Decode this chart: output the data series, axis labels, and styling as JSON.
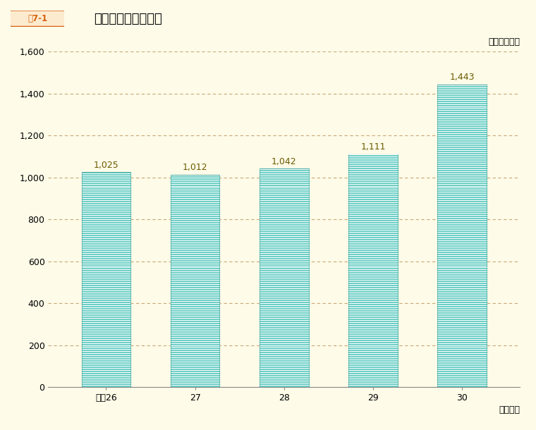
{
  "title": "苦情相談件数の推移",
  "figure_label": "図7-1",
  "unit_label": "（単位：件）",
  "xlabel": "（年度）",
  "categories": [
    "平成26",
    "27",
    "28",
    "29",
    "30"
  ],
  "values": [
    1025,
    1012,
    1042,
    1111,
    1443
  ],
  "bar_face_color": "#6DCFC6",
  "bar_edge_color": "#4AADA4",
  "background_color": "#FEFBE8",
  "plot_bg_color": "#FEFBE8",
  "grid_color": "#C8A878",
  "value_label_color": "#6B5A00",
  "ylim": [
    0,
    1600
  ],
  "yticks": [
    0,
    200,
    400,
    600,
    800,
    1000,
    1200,
    1400,
    1600
  ],
  "bar_width": 0.55,
  "title_fontsize": 13,
  "label_fontsize": 9,
  "tick_fontsize": 9,
  "value_fontsize": 9,
  "figure_label_color": "#D4600A",
  "figure_label_bg": "#FDEBD0",
  "figure_label_border": "#D4600A"
}
